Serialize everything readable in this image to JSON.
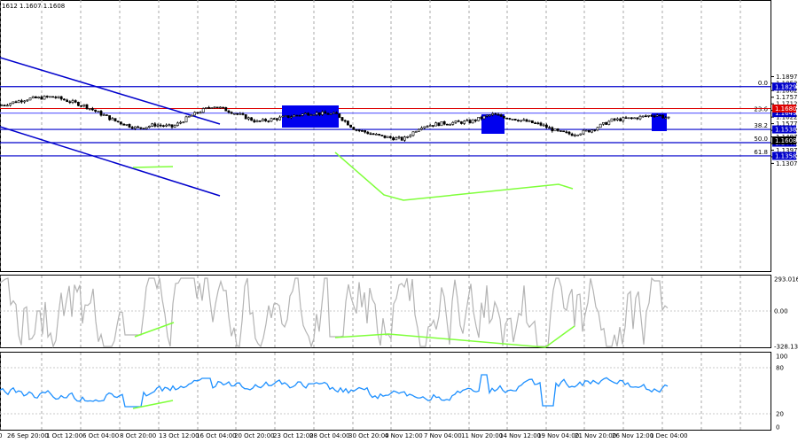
{
  "header": {
    "ohlc_text": "1612 1.1607 1.1608"
  },
  "price_axis": {
    "ticks": [
      "1.1897",
      "1.1852",
      "1.1802",
      "1.1757",
      "1.1712",
      "1.1667",
      "1.1622",
      "1.1577",
      "1.1532",
      "1.1487",
      "1.1442",
      "1.1397",
      "1.1352",
      "1.1307"
    ],
    "current_price": "1.1608"
  },
  "fib_levels": [
    {
      "label": "0.0",
      "price": "1.1829",
      "color": "#0000cc"
    },
    {
      "label": "23.6",
      "price": "1.1649",
      "color": "#6b6bff"
    },
    {
      "label": "38.2",
      "price": "1.1538",
      "color": "#0000cc"
    },
    {
      "label": "50.0",
      "price": "1.1448",
      "color": "#0000cc"
    },
    {
      "label": "61.8",
      "price": "1.1358",
      "color": "#0000cc"
    }
  ],
  "resistance_level": {
    "price": "1.1680",
    "color": "#dd0000"
  },
  "cci_panel": {
    "ticks": [
      "293.0166",
      "0.00",
      "-328.131"
    ]
  },
  "rsi_panel": {
    "ticks": [
      "100",
      "80",
      "20",
      "0"
    ]
  },
  "time_axis": {
    "labels": [
      "0",
      "26 Sep 20:00",
      "1 Oct 12:00",
      "6 Oct 04:00",
      "8 Oct 20:00",
      "13 Oct 12:00",
      "16 Oct 04:00",
      "20 Oct 20:00",
      "23 Oct 12:00",
      "28 Oct 04:00",
      "30 Oct 20:00",
      "4 Nov 12:00",
      "7 Nov 04:00",
      "11 Nov 20:00",
      "14 Nov 12:00",
      "19 Nov 04:00",
      "21 Nov 20:00",
      "26 Nov 12:00",
      "1 Dec 04:00"
    ]
  },
  "colors": {
    "fib_line": "#0000cc",
    "resistance": "#dd0000",
    "trend_channel": "#0000cc",
    "divergence": "#7fff3a",
    "cci_line": "#b4b4b4",
    "rsi_line": "#1e90ff",
    "highlight_box": "#0000ee",
    "price_tag_bg": "#0000cc",
    "current_tag_bg": "#000000"
  }
}
